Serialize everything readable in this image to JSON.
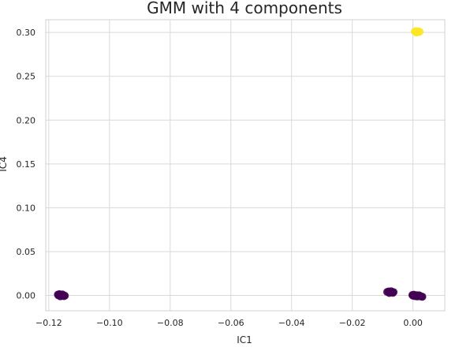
{
  "chart_data": {
    "type": "scatter",
    "title": "GMM with 4 components",
    "xlabel": "IC1",
    "ylabel": "IC4",
    "xlim": [
      -0.121,
      0.0105
    ],
    "ylim": [
      -0.0175,
      0.3145
    ],
    "xticks": [
      -0.12,
      -0.1,
      -0.08,
      -0.06,
      -0.04,
      -0.02,
      0.0
    ],
    "xtick_labels": [
      "−0.12",
      "−0.10",
      "−0.08",
      "−0.06",
      "−0.04",
      "−0.02",
      "0.00"
    ],
    "yticks": [
      0.0,
      0.05,
      0.1,
      0.15,
      0.2,
      0.25,
      0.3
    ],
    "ytick_labels": [
      "0.00",
      "0.05",
      "0.10",
      "0.15",
      "0.20",
      "0.25",
      "0.30"
    ],
    "grid": true,
    "legend": "none",
    "clusters": [
      {
        "color": "#440154",
        "points": [
          {
            "x": -0.117,
            "y": 0.001
          },
          {
            "x": -0.1165,
            "y": 0.0015
          },
          {
            "x": -0.116,
            "y": 0.0005
          },
          {
            "x": -0.1157,
            "y": -0.0005
          },
          {
            "x": -0.1153,
            "y": 0.0
          },
          {
            "x": -0.115,
            "y": -0.0008
          },
          {
            "x": -0.1162,
            "y": -0.001
          },
          {
            "x": -0.1168,
            "y": 0.0
          },
          {
            "x": -0.1155,
            "y": 0.0012
          },
          {
            "x": -0.1147,
            "y": -0.0003
          }
        ]
      },
      {
        "color": "#440154",
        "points": [
          {
            "x": -0.0085,
            "y": 0.004
          },
          {
            "x": -0.008,
            "y": 0.0045
          },
          {
            "x": -0.0075,
            "y": 0.0035
          },
          {
            "x": -0.007,
            "y": 0.004
          },
          {
            "x": -0.0066,
            "y": 0.003
          },
          {
            "x": -0.0078,
            "y": 0.0028
          },
          {
            "x": -0.0072,
            "y": 0.0048
          },
          {
            "x": -0.0064,
            "y": 0.0038
          }
        ]
      },
      {
        "color": "#440154",
        "points": [
          {
            "x": -0.0002,
            "y": 0.0005
          },
          {
            "x": 0.0003,
            "y": 0.0008
          },
          {
            "x": 0.0008,
            "y": 0.0
          },
          {
            "x": 0.0012,
            "y": 0.0003
          },
          {
            "x": 0.0017,
            "y": -0.0005
          },
          {
            "x": 0.002,
            "y": 0.0002
          },
          {
            "x": 0.0024,
            "y": -0.001
          },
          {
            "x": 0.0028,
            "y": -0.0012
          },
          {
            "x": 0.0031,
            "y": -0.0015
          },
          {
            "x": 0.0006,
            "y": -0.0008
          },
          {
            "x": 0.0014,
            "y": -0.0012
          },
          {
            "x": 0.0,
            "y": -0.0003
          },
          {
            "x": 0.0022,
            "y": -0.0004
          }
        ]
      },
      {
        "color": "#fde725",
        "points": [
          {
            "x": 0.0006,
            "y": 0.301
          },
          {
            "x": 0.001,
            "y": 0.3015
          },
          {
            "x": 0.0014,
            "y": 0.3005
          },
          {
            "x": 0.0018,
            "y": 0.3012
          },
          {
            "x": 0.0022,
            "y": 0.3008
          },
          {
            "x": 0.0012,
            "y": 0.2998
          }
        ]
      }
    ]
  }
}
